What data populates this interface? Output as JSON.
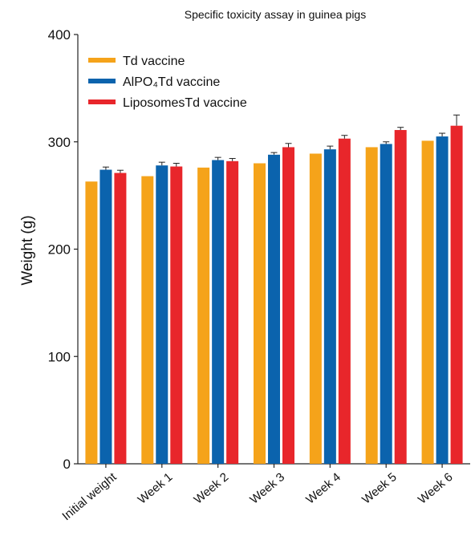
{
  "chart_data": {
    "type": "bar",
    "title": "Specific toxicity assay in guinea pigs",
    "xlabel": "",
    "ylabel": "Weight (g)",
    "ylim": [
      0,
      400
    ],
    "yticks": [
      "0",
      "100",
      "200",
      "300",
      "400"
    ],
    "categories": [
      "Initial weight",
      "Week 1",
      "Week 2",
      "Week 3",
      "Week 4",
      "Week 5",
      "Week 6"
    ],
    "series": [
      {
        "name": "Td vaccine",
        "color": "#f5a31a",
        "values": [
          263,
          268,
          276,
          280,
          289,
          295,
          301
        ],
        "errors": [
          0,
          0,
          0,
          0,
          0,
          0,
          0
        ]
      },
      {
        "name": "AlPO₄Td vaccine",
        "color": "#0b63ad",
        "values": [
          274,
          278,
          283,
          288,
          293,
          298,
          305
        ],
        "errors": [
          2.5,
          3,
          2.5,
          2,
          3,
          2,
          3
        ]
      },
      {
        "name": "LiposomesTd vaccine",
        "color": "#e8262b",
        "values": [
          271,
          277,
          282,
          295,
          303,
          311,
          315
        ],
        "errors": [
          2.5,
          3,
          2.5,
          3.5,
          3,
          2.5,
          10
        ]
      }
    ],
    "legend_position": "top-left",
    "grid": false
  }
}
